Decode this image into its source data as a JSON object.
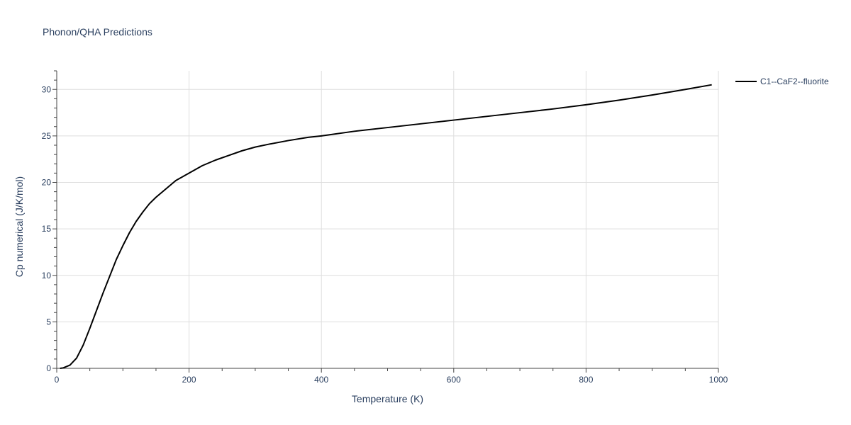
{
  "chart_data": {
    "type": "line",
    "title": "Phonon/QHA Predictions",
    "xlabel": "Temperature (K)",
    "ylabel": "Cp numerical (J/K/mol)",
    "xlim": [
      0,
      1000
    ],
    "ylim": [
      0,
      32
    ],
    "x_ticks": [
      0,
      200,
      400,
      600,
      800,
      1000
    ],
    "y_ticks": [
      0,
      5,
      10,
      15,
      20,
      25,
      30
    ],
    "grid": true,
    "legend_position": "top-right",
    "series": [
      {
        "name": "C1--CaF2--fluorite",
        "color": "#000000",
        "x": [
          5,
          10,
          20,
          30,
          40,
          50,
          60,
          70,
          80,
          90,
          100,
          110,
          120,
          130,
          140,
          150,
          160,
          170,
          180,
          190,
          200,
          220,
          240,
          260,
          280,
          300,
          320,
          350,
          380,
          400,
          450,
          500,
          550,
          600,
          650,
          700,
          750,
          800,
          850,
          900,
          950,
          990
        ],
        "y": [
          0.0,
          0.05,
          0.35,
          1.1,
          2.5,
          4.3,
          6.2,
          8.1,
          9.9,
          11.7,
          13.2,
          14.6,
          15.8,
          16.8,
          17.7,
          18.4,
          19.0,
          19.6,
          20.2,
          20.6,
          21.0,
          21.8,
          22.4,
          22.9,
          23.4,
          23.8,
          24.1,
          24.5,
          24.85,
          25.0,
          25.5,
          25.9,
          26.3,
          26.7,
          27.1,
          27.5,
          27.9,
          28.35,
          28.85,
          29.4,
          30.0,
          30.5
        ]
      }
    ]
  }
}
